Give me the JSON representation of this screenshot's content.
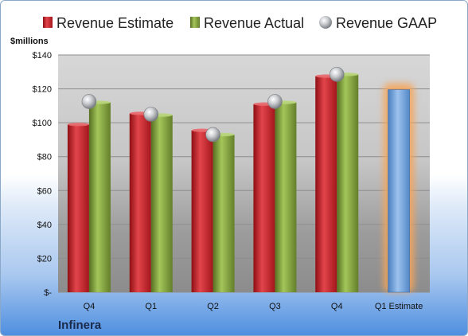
{
  "company": "Infinera",
  "chart_data": {
    "type": "bar",
    "ylabel": "$millions",
    "ylim": [
      0,
      140
    ],
    "yticks": [
      0,
      20,
      40,
      60,
      80,
      100,
      120,
      140
    ],
    "ytick_labels": [
      "$-",
      "$20",
      "$40",
      "$60",
      "$80",
      "$100",
      "$120",
      "$140"
    ],
    "categories": [
      "Q4",
      "Q1",
      "Q2",
      "Q3",
      "Q4",
      "Q1 Estimate"
    ],
    "series": [
      {
        "name": "Revenue Estimate",
        "color": "#c8232b",
        "values": [
          99,
          105.5,
          95.5,
          111,
          127.5,
          null
        ]
      },
      {
        "name": "Revenue Actual",
        "color": "#7ea33a",
        "values": [
          112,
          104.5,
          93,
          112,
          128.5,
          null
        ]
      },
      {
        "name": "Revenue GAAP",
        "color": "#b9bcc0",
        "values": [
          112.5,
          105,
          93,
          112.5,
          128.5,
          null
        ]
      }
    ],
    "estimate": {
      "category": "Q1 Estimate",
      "value": 119.5,
      "color": "#6fa0d8",
      "highlight": "#f5a55a"
    },
    "grid": true,
    "legend": "top"
  }
}
